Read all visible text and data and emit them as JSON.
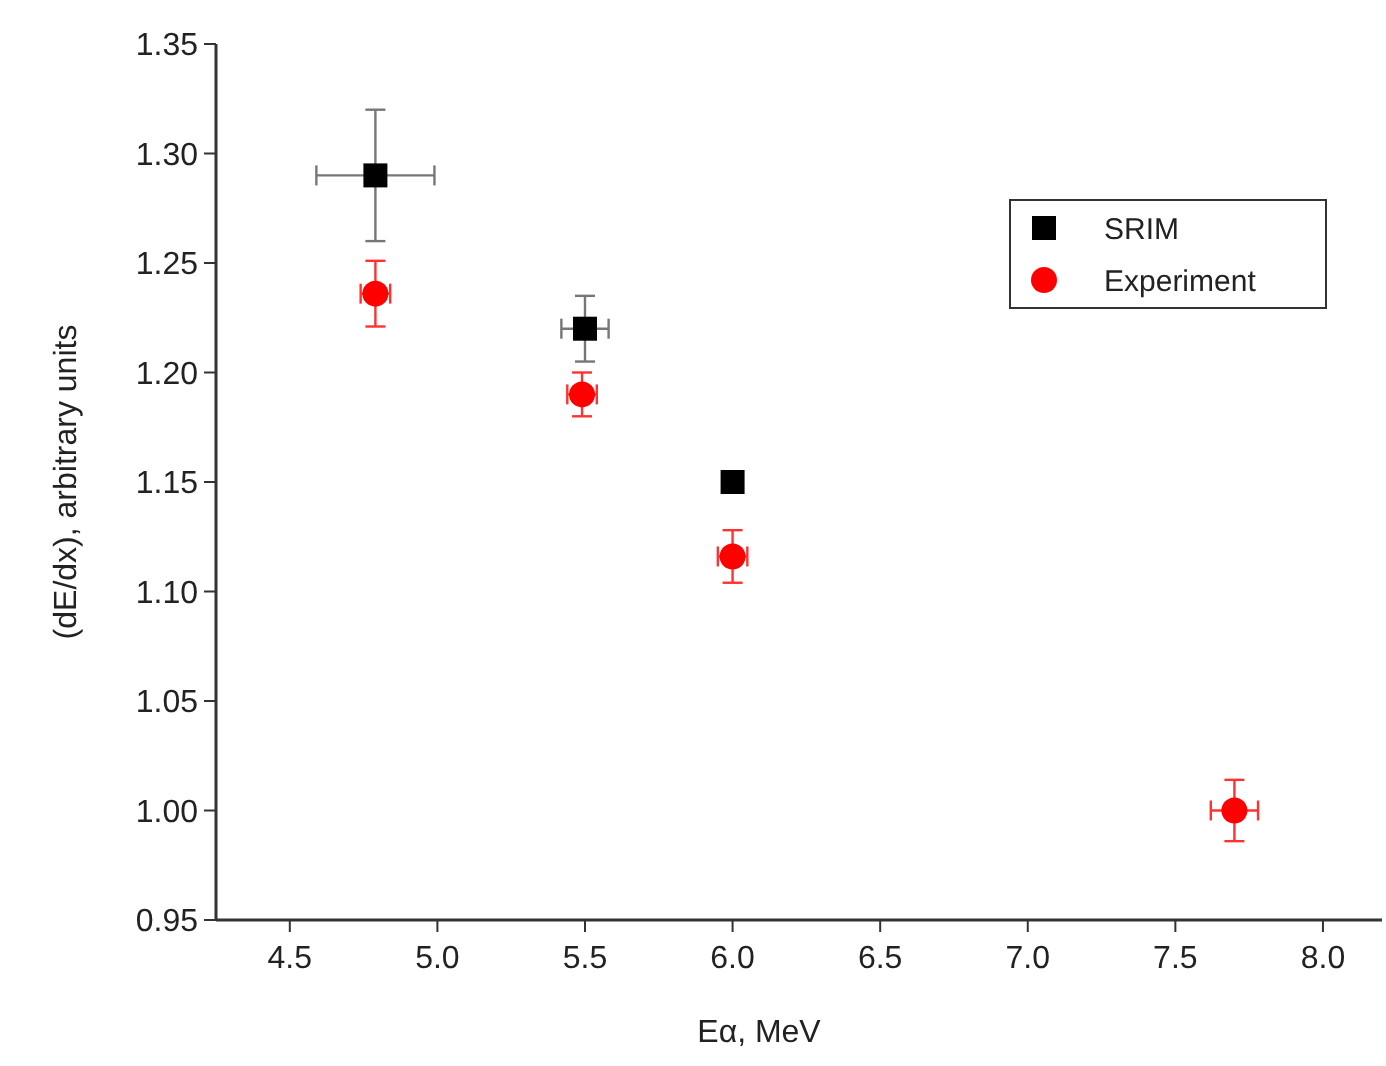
{
  "chart_data": {
    "type": "scatter",
    "xlabel": "Eα, MeV",
    "ylabel": "(dE/dx), arbitrary units",
    "xlim": [
      4.25,
      8.2
    ],
    "xticks": [
      {
        "value": 4.5,
        "label": "4.5"
      },
      {
        "value": 5,
        "label": "5.0"
      },
      {
        "value": 5.5,
        "label": "5.5"
      },
      {
        "value": 6,
        "label": "6.0"
      },
      {
        "value": 6.5,
        "label": "6.5"
      },
      {
        "value": 7,
        "label": "7.0"
      },
      {
        "value": 7.5,
        "label": "7.5"
      },
      {
        "value": 8,
        "label": "8.0"
      }
    ],
    "ylim": [
      0.95,
      1.35
    ],
    "yticks": [
      {
        "value": 0.95,
        "label": "0.95"
      },
      {
        "value": 1,
        "label": "1.00"
      },
      {
        "value": 1.05,
        "label": "1.05"
      },
      {
        "value": 1.1,
        "label": "1.10"
      },
      {
        "value": 1.15,
        "label": "1.15"
      },
      {
        "value": 1.2,
        "label": "1.20"
      },
      {
        "value": 1.25,
        "label": "1.25"
      },
      {
        "value": 1.3,
        "label": "1.30"
      },
      {
        "value": 1.35,
        "label": "1.35"
      }
    ],
    "legend": "top right",
    "grid": false,
    "series": [
      {
        "name": "SRIM",
        "color": "#000000",
        "marker": "square",
        "x": [
          4.79,
          5.5,
          6.0
        ],
        "values": [
          1.29,
          1.22,
          1.15
        ],
        "errors": [
          0.03,
          0.015,
          null
        ],
        "xerrors": [
          0.2,
          0.08,
          null
        ]
      },
      {
        "name": "Experiment",
        "color": "#ff0000",
        "marker": "circle",
        "x": [
          4.79,
          5.49,
          6.0,
          7.7
        ],
        "values": [
          1.236,
          1.19,
          1.116,
          1.0
        ],
        "errors": [
          0.015,
          0.01,
          0.012,
          0.014
        ],
        "xerrors": [
          0.05,
          0.05,
          0.05,
          0.08
        ]
      }
    ]
  }
}
